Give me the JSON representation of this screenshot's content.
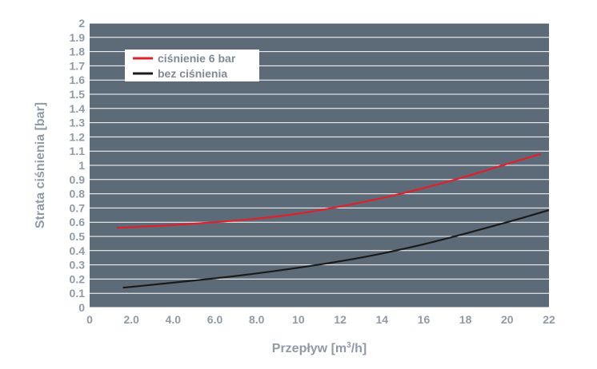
{
  "chart_data": {
    "type": "line",
    "xlabel": "Przepływ [m",
    "xlabel_sup": "3",
    "xlabel_end": "/h]",
    "ylabel": "Strata ciśnienia [bar]",
    "xlim": [
      0,
      22
    ],
    "ylim": [
      0,
      2
    ],
    "x_ticks": [
      0,
      2,
      4,
      6,
      8,
      10,
      12,
      14,
      16,
      18,
      20,
      22
    ],
    "x_tick_labels": [
      "0",
      "2.0",
      "4.0",
      "6.0",
      "8.0",
      "10",
      "12",
      "14",
      "16",
      "18",
      "20",
      "22"
    ],
    "y_ticks": [
      0,
      0.1,
      0.2,
      0.3,
      0.4,
      0.5,
      0.6,
      0.7,
      0.8,
      0.9,
      1,
      1.1,
      1.2,
      1.3,
      1.4,
      1.5,
      1.6,
      1.7,
      1.8,
      1.9,
      2
    ],
    "y_tick_labels": [
      "0",
      "0.1",
      "0.2",
      "0.3",
      "0.4",
      "0.5",
      "0.6",
      "0.7",
      "0.8",
      "0.9",
      "1",
      "1.1",
      "1.2",
      "1.3",
      "1.4",
      "1.5",
      "1.6",
      "1.7",
      "1.8",
      "1.9",
      "2"
    ],
    "grid": "horizontal",
    "legend_position": "top-left",
    "series": [
      {
        "name": "ciśnienie 6 bar",
        "color": "#e0202b",
        "x": [
          1.3,
          2,
          4,
          6,
          8,
          10,
          12,
          14,
          16,
          18,
          20,
          21.6
        ],
        "y": [
          0.56,
          0.565,
          0.58,
          0.6,
          0.625,
          0.66,
          0.71,
          0.77,
          0.84,
          0.92,
          1.01,
          1.08
        ]
      },
      {
        "name": "bez ciśnienia",
        "color": "#1a1a1a",
        "x": [
          1.6,
          2,
          4,
          6,
          8,
          10,
          12,
          14,
          16,
          18,
          20,
          22
        ],
        "y": [
          0.14,
          0.145,
          0.175,
          0.205,
          0.24,
          0.28,
          0.325,
          0.38,
          0.445,
          0.52,
          0.6,
          0.685
        ]
      }
    ]
  }
}
